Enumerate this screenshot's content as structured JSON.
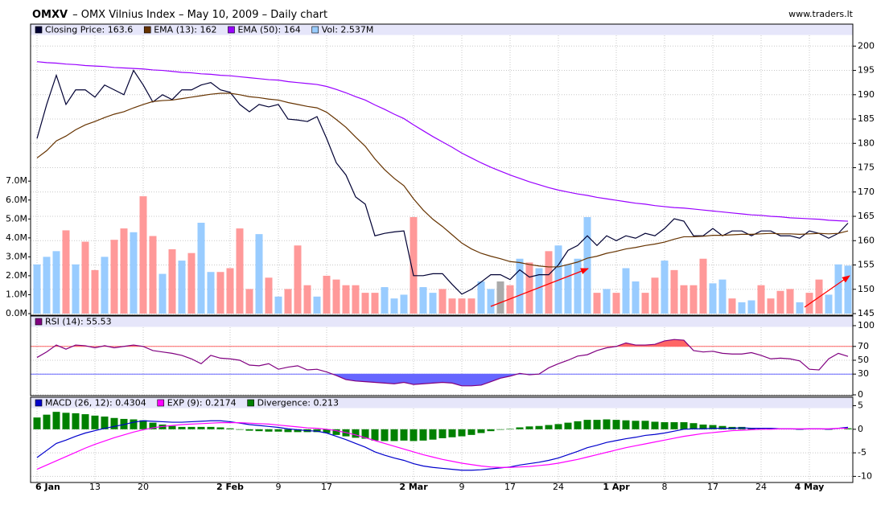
{
  "header": {
    "symbol": "OMXV",
    "title": "– OMX Vilnius Index – May 10, 2009 – Daily chart",
    "source": "www.traders.lt"
  },
  "chart_data": [
    {
      "type": "price",
      "ylim": [
        145,
        202.2
      ],
      "yticks": [
        145,
        150,
        155,
        160,
        165,
        170,
        175,
        180,
        185,
        190,
        195,
        200
      ],
      "y2lim": [
        0,
        14.7
      ],
      "y2ticks": [
        {
          "value": 0,
          "label": "0.0M"
        },
        {
          "value": 1,
          "label": "1.0M"
        },
        {
          "value": 2,
          "label": "2.0M"
        },
        {
          "value": 3,
          "label": "3.0M"
        },
        {
          "value": 4,
          "label": "4.0M"
        },
        {
          "value": 5,
          "label": "5.0M"
        },
        {
          "value": 6,
          "label": "6.0M"
        },
        {
          "value": 7,
          "label": "7.0M"
        }
      ],
      "series": [
        {
          "name": "Closing Price: 163.6",
          "color": "#000033",
          "values": [
            181,
            188,
            194,
            188,
            191,
            191,
            189.5,
            192,
            191,
            190,
            195,
            192,
            188.5,
            190,
            189,
            191,
            191,
            192,
            192.5,
            191,
            190.5,
            188,
            186.5,
            188,
            187.5,
            188,
            185,
            184.8,
            184.5,
            185.5,
            181,
            176,
            173.5,
            169,
            167.5,
            161,
            161.5,
            161.8,
            162,
            152.8,
            152.8,
            153.2,
            153.2,
            151,
            149,
            150,
            151.5,
            153,
            153,
            152,
            154,
            152.5,
            153,
            153,
            155,
            158,
            159,
            161,
            159,
            161,
            160,
            161,
            160.5,
            161.5,
            161,
            162.5,
            164.5,
            164,
            161,
            161,
            162.5,
            161,
            162,
            162,
            161,
            162,
            162,
            161,
            161,
            160.5,
            162,
            161.5,
            160.5,
            161.5,
            163.6
          ]
        },
        {
          "name": "EMA (13): 162",
          "color": "#663300",
          "values": [
            177,
            178.5,
            180.5,
            181.5,
            182.8,
            183.8,
            184.5,
            185.3,
            186,
            186.5,
            187.3,
            188,
            188.6,
            188.8,
            188.9,
            189.2,
            189.5,
            189.8,
            190.1,
            190.3,
            190.3,
            190,
            189.6,
            189.4,
            189.1,
            188.9,
            188.4,
            188,
            187.6,
            187.3,
            186.4,
            184.9,
            183.3,
            181.3,
            179.4,
            176.8,
            174.6,
            172.8,
            171.3,
            168.6,
            166.3,
            164.4,
            162.9,
            161.2,
            159.5,
            158.3,
            157.4,
            156.8,
            156.3,
            155.7,
            155.5,
            155.1,
            154.8,
            154.6,
            154.6,
            155.1,
            155.6,
            156.4,
            156.8,
            157.4,
            157.8,
            158.3,
            158.6,
            159,
            159.3,
            159.7,
            160.3,
            160.8,
            160.8,
            160.9,
            161.1,
            161.1,
            161.2,
            161.3,
            161.3,
            161.4,
            161.5,
            161.4,
            161.4,
            161.3,
            161.4,
            161.5,
            161.4,
            161.5,
            162
          ]
        },
        {
          "name": "EMA (50): 164",
          "color": "#9900ff",
          "values": [
            196.8,
            196.6,
            196.5,
            196.3,
            196.2,
            196,
            195.9,
            195.8,
            195.6,
            195.5,
            195.4,
            195.3,
            195.1,
            195,
            194.8,
            194.6,
            194.5,
            194.3,
            194.2,
            194,
            193.9,
            193.7,
            193.5,
            193.3,
            193.1,
            193,
            192.7,
            192.5,
            192.3,
            192.1,
            191.7,
            191.1,
            190.4,
            189.6,
            188.9,
            187.9,
            187,
            186,
            185.1,
            183.8,
            182.6,
            181.4,
            180.3,
            179.2,
            178,
            177,
            176,
            175.1,
            174.3,
            173.5,
            172.8,
            172.1,
            171.5,
            170.9,
            170.4,
            170,
            169.6,
            169.3,
            168.9,
            168.6,
            168.3,
            168,
            167.7,
            167.5,
            167.2,
            167,
            166.8,
            166.7,
            166.5,
            166.3,
            166.1,
            165.9,
            165.7,
            165.5,
            165.3,
            165.2,
            165,
            164.9,
            164.7,
            164.6,
            164.5,
            164.4,
            164.2,
            164.1,
            164
          ]
        },
        {
          "name": "Vol: 2.537M",
          "type": "bar",
          "axis": "y2",
          "color": "#99ccff",
          "values": [
            2.6,
            3.0,
            3.3,
            4.4,
            2.6,
            3.8,
            2.3,
            3.0,
            3.9,
            4.5,
            4.3,
            6.2,
            4.1,
            2.1,
            3.4,
            2.8,
            3.2,
            4.8,
            2.2,
            2.2,
            2.4,
            4.5,
            1.3,
            4.2,
            1.9,
            0.9,
            1.3,
            3.6,
            1.5,
            0.9,
            2.0,
            1.8,
            1.5,
            1.5,
            1.1,
            1.1,
            1.4,
            0.8,
            1.0,
            5.1,
            1.4,
            1.1,
            1.3,
            0.8,
            0.8,
            0.8,
            1.7,
            1.3,
            1.7,
            1.5,
            2.9,
            2.7,
            2.4,
            3.3,
            3.6,
            2.6,
            2.9,
            5.1,
            1.1,
            1.3,
            1.1,
            2.4,
            1.7,
            1.1,
            1.9,
            2.8,
            2.3,
            1.5,
            1.5,
            2.9,
            1.6,
            1.8,
            0.8,
            0.6,
            0.7,
            1.5,
            0.8,
            1.2,
            1.3,
            0.6,
            1.1,
            1.8,
            1.0,
            2.6,
            2.537
          ],
          "colors": [
            "#99ccff",
            "#99ccff",
            "#99ccff",
            "#ff9999",
            "#99ccff",
            "#ff9999",
            "#ff9999",
            "#99ccff",
            "#ff9999",
            "#ff9999",
            "#99ccff",
            "#ff9999",
            "#ff9999",
            "#99ccff",
            "#ff9999",
            "#99ccff",
            "#ff9999",
            "#99ccff",
            "#99ccff",
            "#ff9999",
            "#ff9999",
            "#ff9999",
            "#ff9999",
            "#99ccff",
            "#ff9999",
            "#99ccff",
            "#ff9999",
            "#ff9999",
            "#ff9999",
            "#99ccff",
            "#ff9999",
            "#ff9999",
            "#ff9999",
            "#ff9999",
            "#ff9999",
            "#ff9999",
            "#99ccff",
            "#99ccff",
            "#99ccff",
            "#ff9999",
            "#99ccff",
            "#99ccff",
            "#ff9999",
            "#ff9999",
            "#ff9999",
            "#ff9999",
            "#99ccff",
            "#99ccff",
            "#aaaaaa",
            "#ff9999",
            "#99ccff",
            "#ff9999",
            "#99ccff",
            "#ff9999",
            "#99ccff",
            "#99ccff",
            "#99ccff",
            "#99ccff",
            "#ff9999",
            "#99ccff",
            "#ff9999",
            "#99ccff",
            "#99ccff",
            "#ff9999",
            "#ff9999",
            "#99ccff",
            "#ff9999",
            "#ff9999",
            "#ff9999",
            "#ff9999",
            "#99ccff",
            "#99ccff",
            "#ff9999",
            "#99ccff",
            "#99ccff",
            "#ff9999",
            "#ff9999",
            "#ff9999",
            "#ff9999",
            "#99ccff",
            "#ff9999",
            "#ff9999",
            "#99ccff",
            "#99ccff",
            "#99ccff"
          ]
        }
      ]
    },
    {
      "type": "rsi",
      "ylim": [
        0,
        111.6
      ],
      "yticks": [
        0,
        30,
        50,
        70,
        100
      ],
      "overbought": 70,
      "oversold": 30,
      "overbought_color": "#ff6666",
      "oversold_color": "#6666ff",
      "series": [
        {
          "name": "RSI (14): 55.53",
          "color": "#800080",
          "values": [
            54,
            62,
            72,
            66,
            72,
            71,
            68,
            71,
            68,
            70,
            72,
            70,
            64,
            62,
            60,
            57,
            52,
            45,
            57,
            53,
            52,
            50,
            43,
            42,
            45,
            37,
            40,
            42,
            36,
            37,
            33,
            28,
            22,
            20,
            19,
            18,
            17,
            16,
            18,
            15,
            16,
            17,
            18,
            17,
            13,
            13,
            14,
            19,
            24,
            27,
            31,
            29,
            30,
            39,
            45,
            50,
            56,
            58,
            64,
            68,
            70,
            75,
            72,
            72,
            73,
            78,
            80,
            79,
            64,
            62,
            63,
            60,
            59,
            59,
            61,
            57,
            52,
            53,
            52,
            49,
            37,
            36,
            52,
            60,
            55.53
          ]
        }
      ]
    },
    {
      "type": "macd",
      "ylim": [
        -11.3,
        6.8
      ],
      "yticks": [
        -10,
        -5,
        0,
        5
      ],
      "categories": [
        "6 Jan",
        null,
        null,
        null,
        null,
        null,
        "13",
        null,
        null,
        null,
        null,
        "20",
        null,
        null,
        null,
        null,
        null,
        null,
        null,
        null,
        "2 Feb",
        null,
        null,
        null,
        null,
        "9",
        null,
        null,
        null,
        null,
        "17",
        null,
        null,
        null,
        null,
        null,
        null,
        null,
        null,
        "2 Mar",
        null,
        null,
        null,
        null,
        "9",
        null,
        null,
        null,
        null,
        "17",
        null,
        null,
        null,
        null,
        "24",
        null,
        null,
        null,
        null,
        null,
        "1 Apr",
        null,
        null,
        null,
        null,
        "8",
        null,
        null,
        null,
        null,
        "17",
        null,
        null,
        null,
        null,
        "24",
        null,
        null,
        null,
        null,
        "4 May",
        null,
        null,
        null,
        null
      ],
      "series": [
        {
          "name": "MACD (26, 12): 0.4304",
          "color": "#0000cc",
          "values": [
            -6,
            -4.5,
            -3,
            -2.3,
            -1.5,
            -0.8,
            -0.3,
            0.2,
            0.6,
            1.0,
            1.5,
            1.8,
            1.7,
            1.6,
            1.5,
            1.5,
            1.6,
            1.7,
            1.8,
            1.8,
            1.6,
            1.3,
            1.0,
            0.8,
            0.6,
            0.4,
            0.1,
            -0.1,
            -0.3,
            -0.4,
            -0.8,
            -1.5,
            -2.2,
            -3.0,
            -3.8,
            -4.8,
            -5.5,
            -6.1,
            -6.6,
            -7.3,
            -7.8,
            -8.1,
            -8.3,
            -8.5,
            -8.7,
            -8.7,
            -8.6,
            -8.4,
            -8.2,
            -8.0,
            -7.6,
            -7.3,
            -7.0,
            -6.6,
            -6.1,
            -5.4,
            -4.7,
            -3.9,
            -3.4,
            -2.8,
            -2.4,
            -2.0,
            -1.7,
            -1.3,
            -1.1,
            -0.8,
            -0.4,
            0,
            0.1,
            0.1,
            0.2,
            0.2,
            0.2,
            0.3,
            0.2,
            0.2,
            0.2,
            0.1,
            0.1,
            0.0,
            0.1,
            0.1,
            0.0,
            0.2,
            0.4304
          ]
        },
        {
          "name": "EXP (9): 0.2174",
          "color": "#ff00ff",
          "values": [
            -8.5,
            -7.6,
            -6.7,
            -5.8,
            -4.9,
            -4.0,
            -3.2,
            -2.5,
            -1.8,
            -1.2,
            -0.6,
            -0.1,
            0.3,
            0.6,
            0.8,
            1.0,
            1.1,
            1.2,
            1.3,
            1.4,
            1.4,
            1.4,
            1.3,
            1.2,
            1.1,
            0.9,
            0.7,
            0.5,
            0.3,
            0.2,
            0.0,
            -0.3,
            -0.7,
            -1.2,
            -1.8,
            -2.4,
            -3.0,
            -3.6,
            -4.2,
            -4.8,
            -5.4,
            -5.9,
            -6.4,
            -6.8,
            -7.2,
            -7.5,
            -7.8,
            -8.0,
            -8.1,
            -8.1,
            -8.0,
            -7.9,
            -7.7,
            -7.5,
            -7.2,
            -6.8,
            -6.4,
            -5.9,
            -5.4,
            -4.9,
            -4.4,
            -3.9,
            -3.5,
            -3.1,
            -2.7,
            -2.3,
            -1.9,
            -1.5,
            -1.2,
            -0.9,
            -0.7,
            -0.5,
            -0.3,
            -0.2,
            -0.1,
            0.0,
            0.0,
            0.1,
            0.1,
            0.1,
            0.1,
            0.1,
            0.1,
            0.2,
            0.2174
          ]
        },
        {
          "name": "Divergence: 0.213",
          "type": "bar",
          "color": "#008000",
          "values": [
            2.5,
            3.1,
            3.7,
            3.5,
            3.4,
            3.2,
            2.9,
            2.7,
            2.4,
            2.2,
            2.1,
            1.9,
            1.4,
            1.0,
            0.7,
            0.5,
            0.5,
            0.5,
            0.5,
            0.4,
            0.2,
            -0.1,
            -0.3,
            -0.4,
            -0.5,
            -0.5,
            -0.6,
            -0.6,
            -0.6,
            -0.6,
            -0.8,
            -1.2,
            -1.5,
            -1.8,
            -2.0,
            -2.4,
            -2.5,
            -2.5,
            -2.4,
            -2.5,
            -2.4,
            -2.2,
            -1.9,
            -1.7,
            -1.5,
            -1.2,
            -0.8,
            -0.4,
            -0.1,
            0.1,
            0.4,
            0.6,
            0.7,
            0.9,
            1.1,
            1.4,
            1.7,
            2.0,
            2.0,
            2.1,
            2.0,
            1.9,
            1.8,
            1.8,
            1.6,
            1.5,
            1.5,
            1.5,
            1.3,
            1.0,
            0.9,
            0.7,
            0.5,
            0.5,
            0.3,
            0.2,
            0.2,
            0.0,
            0.0,
            -0.1,
            0.0,
            0.0,
            -0.1,
            0.0,
            0.213
          ]
        }
      ]
    }
  ]
}
